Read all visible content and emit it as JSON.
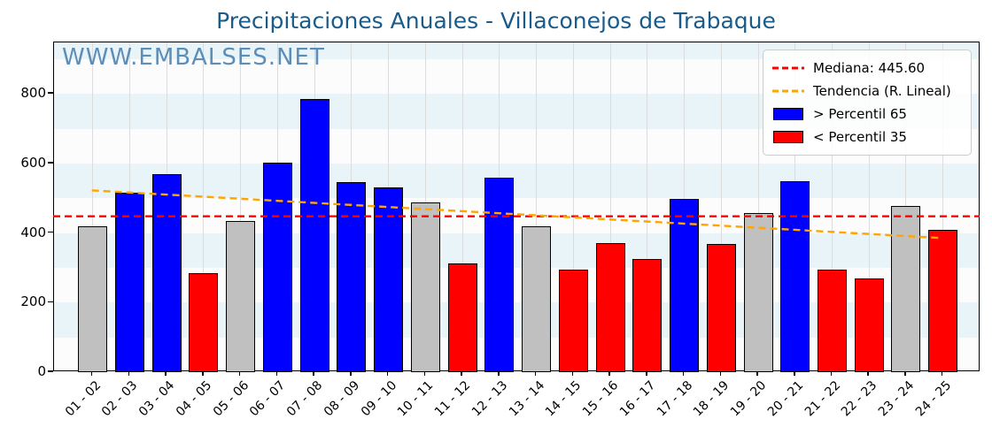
{
  "title": "Precipitaciones Anuales - Villaconejos de Trabaque",
  "watermark": "WWW.EMBALSES.NET",
  "legend": {
    "median_label": "Mediana: 445.60",
    "trend_label": "Tendencia (R. Lineal)",
    "above_label": "> Percentil 65",
    "below_label": "< Percentil 35"
  },
  "colors": {
    "title": "#1a5b8a",
    "watermark": "#4d82b0",
    "above_percentile_65": "#0000ff",
    "below_percentile_35": "#ff0000",
    "mid_percentile": "#c0c0c0",
    "median_line": "#ff0000",
    "trend_line": "#ffa500",
    "band": "#e9f4f9"
  },
  "chart_data": {
    "type": "bar",
    "title": "Precipitaciones Anuales - Villaconejos de Trabaque",
    "xlabel": "",
    "ylabel": "",
    "categories": [
      "01 - 02",
      "02 - 03",
      "03 - 04",
      "04 - 05",
      "05 - 06",
      "06 - 07",
      "07 - 08",
      "08 - 09",
      "09 - 10",
      "10 - 11",
      "11 - 12",
      "12 - 13",
      "13 - 14",
      "14 - 15",
      "15 - 16",
      "16 - 17",
      "17 - 18",
      "18 - 19",
      "19 - 20",
      "20 - 21",
      "21 - 22",
      "22 - 23",
      "23 - 24",
      "24 - 25"
    ],
    "values": [
      420,
      515,
      570,
      285,
      435,
      603,
      785,
      547,
      532,
      489,
      313,
      560,
      420,
      295,
      370,
      325,
      497,
      368,
      457,
      550,
      295,
      270,
      477,
      410
    ],
    "bar_classes": [
      "mid",
      "above",
      "above",
      "below",
      "mid",
      "above",
      "above",
      "above",
      "above",
      "mid",
      "below",
      "above",
      "mid",
      "below",
      "below",
      "below",
      "above",
      "below",
      "mid",
      "above",
      "below",
      "below",
      "mid",
      "below"
    ],
    "median": 445.6,
    "trend_linear": {
      "start_value": 520,
      "end_value": 383
    },
    "yticks": [
      0,
      200,
      400,
      600,
      800
    ],
    "ylim": [
      0,
      948
    ],
    "band_step": 100,
    "grid": "vertical",
    "legend_position": "upper right"
  }
}
